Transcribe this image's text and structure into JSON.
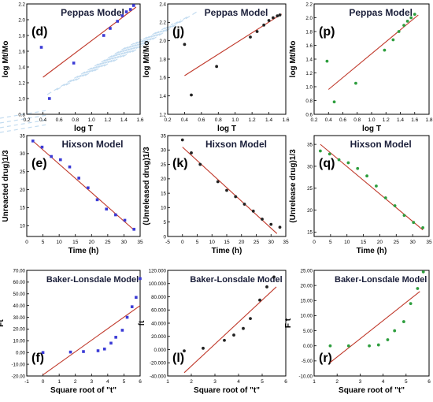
{
  "figure": {
    "background": "#ffffff",
    "fit_line_color": "#c0392b",
    "watermark_color": "#a9cdea"
  },
  "chart_data": [
    {
      "panel": "d",
      "type": "scatter",
      "title": "Peppas Model",
      "xlabel": "log T",
      "ylabel": "log Mt/Mo",
      "xlim": [
        0.2,
        1.6
      ],
      "ylim": [
        0.8,
        2.2
      ],
      "xticks": [
        "0.2",
        "0.4",
        "0.6",
        "0.8",
        "1.0",
        "1.2",
        "1.4",
        "1.6"
      ],
      "yticks": [
        "0.8",
        "1.0",
        "1.2",
        "1.4",
        "1.6",
        "1.8",
        "2.0",
        "2.2"
      ],
      "marker_color": "#3b3bd6",
      "points": [
        [
          0.38,
          1.65
        ],
        [
          0.48,
          1.0
        ],
        [
          0.78,
          1.45
        ],
        [
          1.15,
          1.8
        ],
        [
          1.23,
          1.89
        ],
        [
          1.32,
          1.98
        ],
        [
          1.38,
          2.05
        ],
        [
          1.43,
          2.1
        ],
        [
          1.48,
          2.13
        ],
        [
          1.52,
          2.18
        ]
      ],
      "fit": [
        [
          0.4,
          1.27
        ],
        [
          1.55,
          2.16
        ]
      ]
    },
    {
      "panel": "j",
      "type": "scatter",
      "title": "Peppas Model",
      "xlabel": "log T",
      "ylabel": "log Mt/Mo",
      "xlim": [
        0.2,
        1.6
      ],
      "ylim": [
        1.2,
        2.4
      ],
      "xticks": [
        "0.2",
        "0.4",
        "0.6",
        "0.8",
        "1.0",
        "1.2",
        "1.4",
        "1.6"
      ],
      "yticks": [
        "1.2",
        "1.4",
        "1.6",
        "1.8",
        "2.0",
        "2.2",
        "2.4"
      ],
      "marker_color": "#222222",
      "points": [
        [
          0.4,
          1.96
        ],
        [
          0.48,
          1.41
        ],
        [
          0.78,
          1.72
        ],
        [
          1.18,
          2.04
        ],
        [
          1.26,
          2.1
        ],
        [
          1.34,
          2.17
        ],
        [
          1.4,
          2.22
        ],
        [
          1.45,
          2.25
        ],
        [
          1.5,
          2.27
        ],
        [
          1.53,
          2.28
        ]
      ],
      "fit": [
        [
          0.4,
          1.62
        ],
        [
          1.55,
          2.29
        ]
      ]
    },
    {
      "panel": "p",
      "type": "scatter",
      "title": "Peppas Model",
      "xlabel": "log T",
      "ylabel": "log Mt/Mo",
      "xlim": [
        0.2,
        1.8
      ],
      "ylim": [
        0.6,
        2.2
      ],
      "xticks": [
        "0.2",
        "0.4",
        "0.6",
        "0.8",
        "1.0",
        "1.2",
        "1.4",
        "1.6",
        "1.8"
      ],
      "yticks": [
        "0.6",
        "0.8",
        "1.0",
        "1.2",
        "1.4",
        "1.6",
        "1.8",
        "2.0",
        "2.2"
      ],
      "marker_color": "#2e9e3e",
      "points": [
        [
          0.38,
          1.37
        ],
        [
          0.48,
          0.78
        ],
        [
          0.78,
          1.05
        ],
        [
          1.18,
          1.53
        ],
        [
          1.3,
          1.68
        ],
        [
          1.38,
          1.8
        ],
        [
          1.45,
          1.89
        ],
        [
          1.5,
          1.95
        ],
        [
          1.55,
          2.0
        ],
        [
          1.6,
          2.05
        ]
      ],
      "fit": [
        [
          0.4,
          0.96
        ],
        [
          1.65,
          2.04
        ]
      ]
    },
    {
      "panel": "e",
      "type": "scatter",
      "title": "Hixson Model",
      "xlabel": "Time (h)",
      "ylabel": "Unreacted drug)1/3",
      "xlim": [
        -2,
        35
      ],
      "ylim": [
        7,
        35
      ],
      "xticks": [
        "0",
        "5",
        "10",
        "15",
        "20",
        "25",
        "30",
        "35"
      ],
      "yticks": [
        "10",
        "15",
        "20",
        "25",
        "30",
        "35"
      ],
      "marker_color": "#3b3bd6",
      "points": [
        [
          0,
          33.5
        ],
        [
          3,
          31.8
        ],
        [
          6,
          29.2
        ],
        [
          9,
          28.3
        ],
        [
          12,
          26.3
        ],
        [
          15,
          23.2
        ],
        [
          18,
          20.5
        ],
        [
          21,
          17.2
        ],
        [
          24,
          14.6
        ],
        [
          27,
          13
        ],
        [
          30,
          11.5
        ],
        [
          33,
          9
        ]
      ],
      "fit": [
        [
          0,
          33.5
        ],
        [
          33,
          8.8
        ]
      ]
    },
    {
      "panel": "k",
      "type": "scatter",
      "title": "Hixson Model",
      "xlabel": "Time (h)",
      "ylabel": "(Unreleased drug)1/3",
      "xlim": [
        -5,
        35
      ],
      "ylim": [
        0,
        35
      ],
      "xticks": [
        "-5",
        "0",
        "5",
        "10",
        "15",
        "20",
        "25",
        "30",
        "35"
      ],
      "yticks": [
        "0",
        "5",
        "10",
        "15",
        "20",
        "25",
        "30",
        "35"
      ],
      "marker_color": "#222222",
      "points": [
        [
          0,
          33.5
        ],
        [
          3,
          29
        ],
        [
          6,
          25
        ],
        [
          12,
          19
        ],
        [
          15,
          16
        ],
        [
          18,
          13.8
        ],
        [
          21,
          11.2
        ],
        [
          24,
          8.8
        ],
        [
          27,
          6
        ],
        [
          30,
          4.2
        ],
        [
          33,
          3.2
        ]
      ],
      "fit": [
        [
          0,
          31
        ],
        [
          32,
          1
        ]
      ]
    },
    {
      "panel": "q",
      "type": "scatter",
      "title": "Hixson Model",
      "xlabel": "Time (h)",
      "ylabel": "(Unrelease drug)1/3",
      "xlim": [
        -2,
        35
      ],
      "ylim": [
        14,
        37
      ],
      "xticks": [
        "0",
        "5",
        "10",
        "15",
        "20",
        "25",
        "30",
        "35"
      ],
      "yticks": [
        "15",
        "20",
        "25",
        "30",
        "35"
      ],
      "marker_color": "#2e9e3e",
      "points": [
        [
          0,
          33.5
        ],
        [
          3,
          32.8
        ],
        [
          6,
          31.5
        ],
        [
          9,
          30.8
        ],
        [
          12,
          29.5
        ],
        [
          15,
          27.8
        ],
        [
          18,
          25.5
        ],
        [
          21,
          22.8
        ],
        [
          24,
          21
        ],
        [
          27,
          18.8
        ],
        [
          30,
          17.2
        ],
        [
          33,
          16
        ]
      ],
      "fit": [
        [
          0,
          35
        ],
        [
          33,
          15.5
        ]
      ]
    },
    {
      "panel": "f",
      "type": "scatter",
      "title": "Baker-Lonsdale Model",
      "xlabel": "Square root of \"t\"",
      "ylabel": "Ft",
      "xlim": [
        -1,
        6
      ],
      "ylim": [
        -20,
        70
      ],
      "xticks": [
        "-1",
        "0",
        "1",
        "2",
        "3",
        "4",
        "5",
        "6"
      ],
      "yticks": [
        "-20.00",
        "-10.00",
        "0.00",
        "10.00",
        "20.00",
        "30.00",
        "40.00",
        "50.00",
        "60.00",
        "70.00"
      ],
      "marker_color": "#3b3bd6",
      "points": [
        [
          0,
          0
        ],
        [
          1.7,
          0.4
        ],
        [
          2.5,
          0.8
        ],
        [
          3.4,
          1.5
        ],
        [
          3.8,
          3
        ],
        [
          4.2,
          8
        ],
        [
          4.5,
          13
        ],
        [
          4.9,
          19
        ],
        [
          5.2,
          30
        ],
        [
          5.5,
          39
        ],
        [
          5.75,
          47
        ],
        [
          6,
          63
        ]
      ],
      "fit": [
        [
          0,
          -19
        ],
        [
          6,
          40
        ]
      ]
    },
    {
      "panel": "l",
      "type": "scatter",
      "title": "Baker-Lonsdale Model",
      "xlabel": "Square root of \"t\"",
      "ylabel": "ft",
      "xlim": [
        1,
        6
      ],
      "ylim": [
        -40,
        120
      ],
      "xticks": [
        "1",
        "2",
        "3",
        "4",
        "5",
        "6"
      ],
      "yticks": [
        "-40.000",
        "-20.000",
        "0.000",
        "20.000",
        "40.000",
        "60.000",
        "80.000",
        "100.000",
        "120.000"
      ],
      "marker_color": "#222222",
      "points": [
        [
          1.7,
          -2
        ],
        [
          2.5,
          2
        ],
        [
          3.4,
          14
        ],
        [
          3.8,
          22
        ],
        [
          4.2,
          32
        ],
        [
          4.5,
          47
        ],
        [
          4.9,
          75
        ],
        [
          5.2,
          95
        ],
        [
          5.5,
          110
        ]
      ],
      "fit": [
        [
          1.7,
          -35
        ],
        [
          5.6,
          95
        ]
      ]
    },
    {
      "panel": "r",
      "type": "scatter",
      "title": "Baker-Lonsdale Model",
      "xlabel": "Square root of \"t\"",
      "ylabel": "F t",
      "xlim": [
        1,
        6
      ],
      "ylim": [
        -10,
        25
      ],
      "xticks": [
        "1",
        "2",
        "3",
        "4",
        "5",
        "6"
      ],
      "yticks": [
        "-10.00",
        "-5.00",
        "0.00",
        "5.00",
        "10.00",
        "15.00",
        "20.00",
        "25.00"
      ],
      "marker_color": "#2e9e3e",
      "points": [
        [
          1.7,
          0
        ],
        [
          2.5,
          0
        ],
        [
          3.4,
          0
        ],
        [
          3.8,
          0.3
        ],
        [
          4.2,
          2
        ],
        [
          4.5,
          5
        ],
        [
          4.9,
          8
        ],
        [
          5.2,
          14
        ],
        [
          5.5,
          19
        ],
        [
          5.75,
          24.5
        ]
      ],
      "fit": [
        [
          1.7,
          -5.5
        ],
        [
          5.6,
          18
        ]
      ]
    }
  ]
}
